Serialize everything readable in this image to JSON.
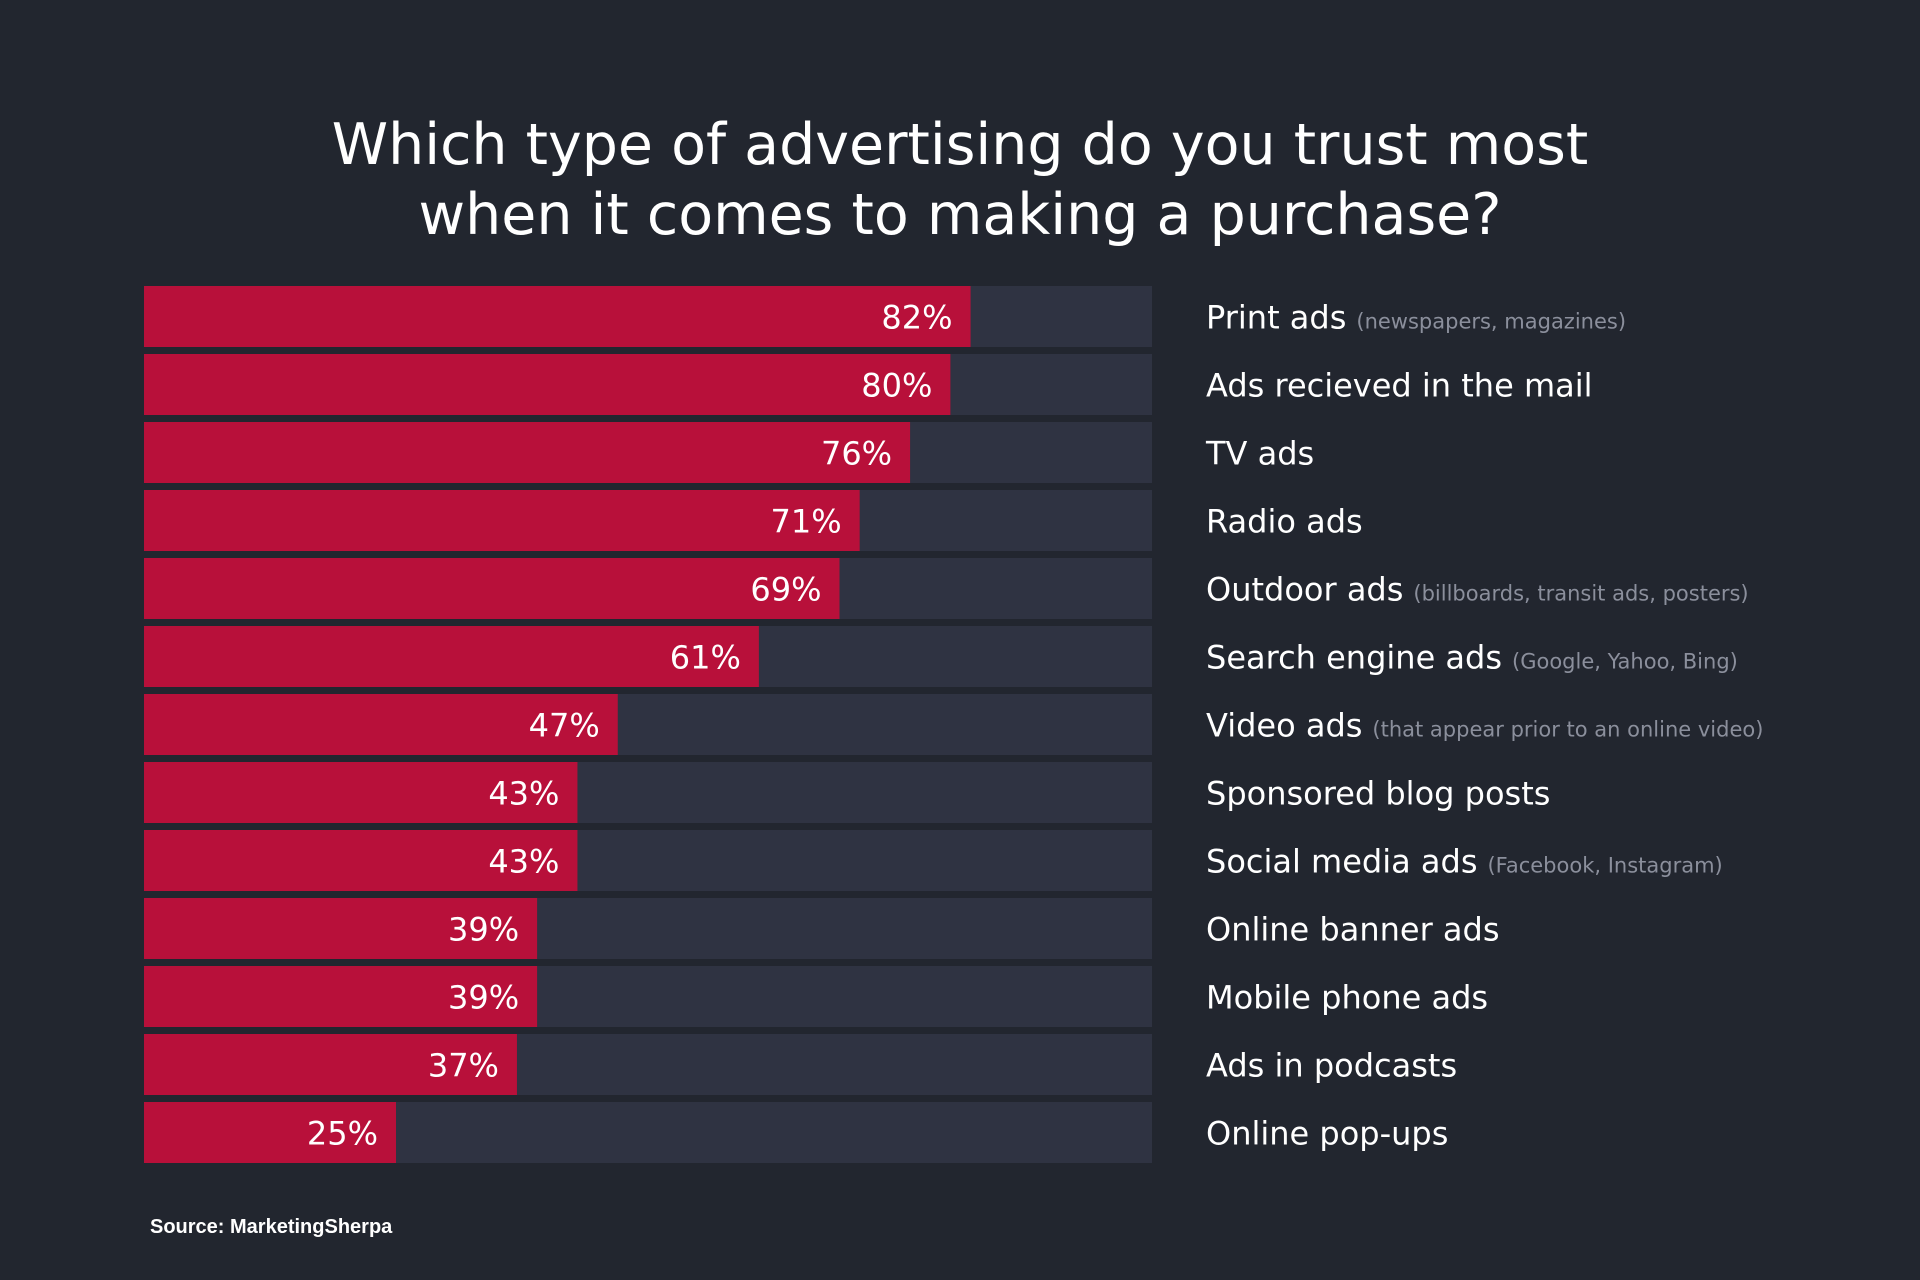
{
  "title_lines": [
    "Which type of advertising do you trust most",
    "when it comes to making a purchase?"
  ],
  "source": "Source: MarketingSherpa",
  "colors": {
    "background": "#22262f",
    "bar_fill": "#b8103a",
    "bar_track": "#2f3342",
    "text": "#ffffff",
    "sub_text": "#8b8f9c"
  },
  "chart_data": {
    "type": "bar",
    "orientation": "horizontal",
    "title": "Which type of advertising do you trust most when it comes to making a purchase?",
    "xlim": [
      0,
      100
    ],
    "unit": "%",
    "grid": false,
    "categories": [
      "Print ads",
      "Ads recieved in the mail",
      "TV ads",
      "Radio ads",
      "Outdoor ads",
      "Search engine ads",
      "Video ads",
      "Sponsored blog posts",
      "Social media ads",
      "Online banner ads",
      "Mobile phone ads",
      "Ads in podcasts",
      "Online pop-ups"
    ],
    "category_notes": [
      "(newspapers, magazines)",
      "",
      "",
      "",
      "(billboards, transit ads, posters)",
      "(Google, Yahoo, Bing)",
      "(that appear prior to an online video)",
      "",
      "(Facebook, Instagram)",
      "",
      "",
      "",
      ""
    ],
    "values": [
      82,
      80,
      76,
      71,
      69,
      61,
      47,
      43,
      43,
      39,
      39,
      37,
      25
    ],
    "value_labels": [
      "82%",
      "80%",
      "76%",
      "71%",
      "69%",
      "61%",
      "47%",
      "43%",
      "43%",
      "39%",
      "39%",
      "37%",
      "25%"
    ]
  }
}
